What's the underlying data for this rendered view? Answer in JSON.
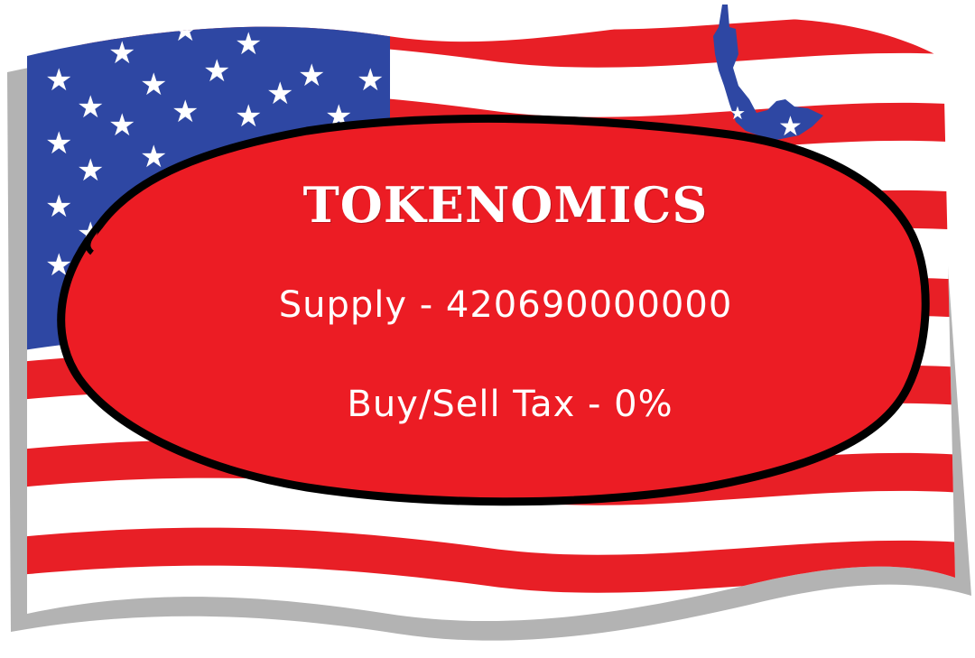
{
  "card": {
    "title": "TOKENOMICS",
    "supply": "Supply - 420690000000",
    "tax": "Buy/Sell Tax - 0%"
  },
  "colors": {
    "flag_red": "#e81f26",
    "flag_blue": "#2e47a3",
    "flag_white": "#ffffff",
    "shadow_gray": "#b3b3b3",
    "blob_red": "#ec1c24",
    "outline": "#000000"
  },
  "art": {
    "background": "american-flag-illustration",
    "decoration": "statue-of-liberty-illustration"
  }
}
